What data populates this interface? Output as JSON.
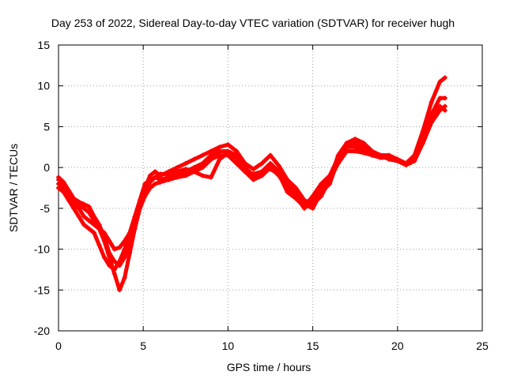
{
  "chart_data": {
    "type": "scatter",
    "title": "Day 253 of 2022, Sidereal Day-to-day VTEC variation (SDTVAR) for receiver hugh",
    "xlabel": "GPS time / hours",
    "ylabel": "SDTVAR / TECUs",
    "xlim": [
      0,
      25
    ],
    "ylim": [
      -20,
      15
    ],
    "xticks": [
      0,
      5,
      10,
      15,
      20,
      25
    ],
    "yticks": [
      -20,
      -15,
      -10,
      -5,
      0,
      5,
      10,
      15
    ],
    "grid": true,
    "legend": "none",
    "series_color": "#ff0000",
    "series": [
      {
        "x": [
          0,
          0.3,
          0.6,
          0.9,
          1.2,
          1.5,
          1.8,
          2.1,
          2.4,
          2.7,
          3.0,
          3.3,
          3.6,
          3.9,
          4.2,
          4.5,
          4.8,
          5.1,
          5.4,
          5.7,
          6.0,
          6.5,
          7.0,
          7.5,
          8.0,
          8.5,
          9.0,
          9.5,
          10.0,
          10.5,
          11.0,
          11.5,
          12.0,
          12.5,
          13.0,
          13.5,
          14.0,
          14.5,
          15.0,
          15.5,
          16.0,
          16.5,
          17.0,
          17.5,
          18.0,
          18.5,
          19.0,
          19.5,
          20.0,
          20.5,
          21.0,
          21.5,
          22.0,
          22.5,
          22.8
        ],
        "y": [
          -2.0,
          -2.5,
          -3.5,
          -4.5,
          -5.0,
          -6.0,
          -6.5,
          -7.0,
          -7.5,
          -8.0,
          -9.0,
          -10.0,
          -9.8,
          -9.0,
          -8.0,
          -6.5,
          -4.5,
          -2.5,
          -1.0,
          -0.5,
          -1.0,
          -0.5,
          0,
          0.5,
          1.0,
          1.5,
          2.0,
          2.5,
          2.8,
          2.0,
          0.5,
          -0.2,
          0.5,
          1.5,
          0.2,
          -1.5,
          -2.5,
          -4.0,
          -4.5,
          -3.5,
          -1.5,
          1.5,
          3.0,
          3.5,
          3.0,
          2.0,
          1.5,
          1.5,
          1.0,
          0.5,
          1.5,
          4.5,
          8.0,
          10.5,
          11.0
        ]
      },
      {
        "x": [
          0,
          0.3,
          0.6,
          0.9,
          1.2,
          1.5,
          1.8,
          2.1,
          2.4,
          2.7,
          3.0,
          3.3,
          3.6,
          3.9,
          4.2,
          4.5,
          4.8,
          5.1,
          5.4,
          5.7,
          6.0,
          6.5,
          7.0,
          7.5,
          8.0,
          8.5,
          9.0,
          9.5,
          10.0,
          10.5,
          11.0,
          11.5,
          12.0,
          12.5,
          13.0,
          13.5,
          14.0,
          14.5,
          15.0,
          15.5,
          16.0,
          16.5,
          17.0,
          17.5,
          18.0,
          18.5,
          19.0,
          19.5,
          20.0,
          20.5,
          21.0,
          21.5,
          22.0,
          22.5,
          22.8
        ],
        "y": [
          -2.5,
          -3.0,
          -4.0,
          -5.0,
          -6.0,
          -7.0,
          -7.5,
          -8.0,
          -9.5,
          -11.0,
          -12.0,
          -12.5,
          -11.5,
          -10.0,
          -8.0,
          -6.0,
          -4.0,
          -2.0,
          -1.5,
          -1.2,
          -1.5,
          -1.2,
          -1.0,
          -0.5,
          0,
          0.5,
          1.5,
          2.0,
          2.0,
          1.5,
          0,
          -1.0,
          -0.5,
          0.5,
          -0.5,
          -2.0,
          -3.0,
          -4.5,
          -5.0,
          -3.0,
          -2.0,
          1.0,
          2.5,
          2.5,
          2.0,
          1.5,
          1.5,
          1.2,
          1.0,
          0.5,
          1.0,
          4.0,
          6.5,
          8.5,
          8.5
        ]
      },
      {
        "x": [
          0,
          0.3,
          0.6,
          0.9,
          1.2,
          1.5,
          1.8,
          2.1,
          2.4,
          2.7,
          3.0,
          3.3,
          3.6,
          3.9,
          4.2,
          4.5,
          4.8,
          5.1,
          5.4,
          5.7,
          6.0,
          6.5,
          7.0,
          7.5,
          8.0,
          8.5,
          9.0,
          9.5,
          10.0,
          10.5,
          11.0,
          11.5,
          12.0,
          12.5,
          13.0,
          13.5,
          14.0,
          14.5,
          15.0,
          15.5,
          16.0,
          16.5,
          17.0,
          17.5,
          18.0,
          18.5,
          19.0,
          19.5,
          20.0,
          20.5,
          21.0,
          21.5,
          22.0,
          22.5,
          22.8
        ],
        "y": [
          -1.5,
          -2.0,
          -3.0,
          -4.0,
          -4.5,
          -5.0,
          -5.5,
          -6.5,
          -7.5,
          -9.0,
          -11.0,
          -13.0,
          -15.0,
          -13.5,
          -10.5,
          -7.5,
          -5.0,
          -3.5,
          -2.5,
          -2.0,
          -1.8,
          -1.5,
          -1.2,
          -1.0,
          -0.5,
          0,
          1.0,
          1.5,
          1.5,
          0.5,
          -0.5,
          -1.5,
          -1.0,
          0,
          -1.0,
          -2.5,
          -3.5,
          -5.0,
          -4.0,
          -2.5,
          -1.5,
          0.5,
          2.0,
          2.0,
          1.8,
          1.5,
          1.2,
          1.2,
          0.8,
          0.5,
          1.0,
          3.5,
          6.0,
          7.5,
          7.0
        ]
      },
      {
        "x": [
          0,
          0.3,
          0.6,
          0.9,
          1.2,
          1.5,
          1.8,
          2.1,
          2.4,
          2.7,
          3.0,
          3.3,
          3.6,
          3.9,
          4.2,
          4.5,
          4.8,
          5.1,
          5.4,
          5.7,
          6.0,
          6.5,
          7.0,
          7.5,
          8.0,
          8.5,
          9.0,
          9.5,
          10.0,
          10.5,
          11.0,
          11.5,
          12.0,
          12.5,
          13.0,
          13.5,
          14.0,
          14.5,
          15.0,
          15.5,
          16.0,
          16.5,
          17.0,
          17.5,
          18.0,
          18.5,
          19.0,
          19.5,
          20.0,
          20.5,
          21.0,
          21.5,
          22.0,
          22.5,
          22.8
        ],
        "y": [
          -1.2,
          -1.8,
          -2.8,
          -3.8,
          -4.2,
          -4.5,
          -4.8,
          -6.0,
          -7.0,
          -8.5,
          -10.5,
          -11.5,
          -12.0,
          -11.0,
          -9.0,
          -7.0,
          -4.5,
          -2.8,
          -1.8,
          -1.2,
          -0.8,
          -0.8,
          -0.5,
          -0.2,
          -0.5,
          -1.0,
          -1.2,
          1.0,
          1.8,
          1.2,
          -0.5,
          -0.8,
          -0.5,
          -0.2,
          -0.8,
          -3.0,
          -3.8,
          -4.8,
          -3.5,
          -2.0,
          -1.0,
          1.2,
          2.8,
          3.0,
          2.5,
          1.8,
          1.5,
          1.0,
          0.8,
          0.3,
          0.8,
          3.0,
          5.5,
          7.0,
          7.5
        ]
      }
    ]
  }
}
